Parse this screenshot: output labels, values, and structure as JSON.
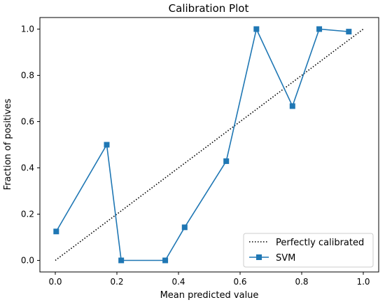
{
  "chart_data": {
    "type": "line",
    "title": "Calibration Plot",
    "xlabel": "Mean predicted value",
    "ylabel": "Fraction of positives",
    "xlim": [
      -0.05,
      1.05
    ],
    "ylim": [
      -0.05,
      1.05
    ],
    "xticks": [
      0.0,
      0.2,
      0.4,
      0.6,
      0.8,
      1.0
    ],
    "yticks": [
      0.0,
      0.2,
      0.4,
      0.6,
      0.8,
      1.0
    ],
    "xtick_labels": [
      "0.0",
      "0.2",
      "0.4",
      "0.6",
      "0.8",
      "1.0"
    ],
    "ytick_labels": [
      "0.0",
      "0.2",
      "0.4",
      "0.6",
      "0.8",
      "1.0"
    ],
    "grid": false,
    "legend_position": "lower-right",
    "series": [
      {
        "name": "Perfectly calibrated",
        "style": "dotted",
        "color": "#000000",
        "marker": "none",
        "x": [
          0.0,
          1.0
        ],
        "y": [
          0.0,
          1.0
        ]
      },
      {
        "name": "SVM",
        "style": "solid",
        "color": "#1f77b4",
        "marker": "square",
        "x": [
          0.003,
          0.167,
          0.214,
          0.357,
          0.42,
          0.555,
          0.653,
          0.77,
          0.857,
          0.953
        ],
        "y": [
          0.125,
          0.5,
          0.0,
          0.0,
          0.143,
          0.429,
          1.0,
          0.667,
          1.0,
          0.989
        ]
      }
    ]
  }
}
